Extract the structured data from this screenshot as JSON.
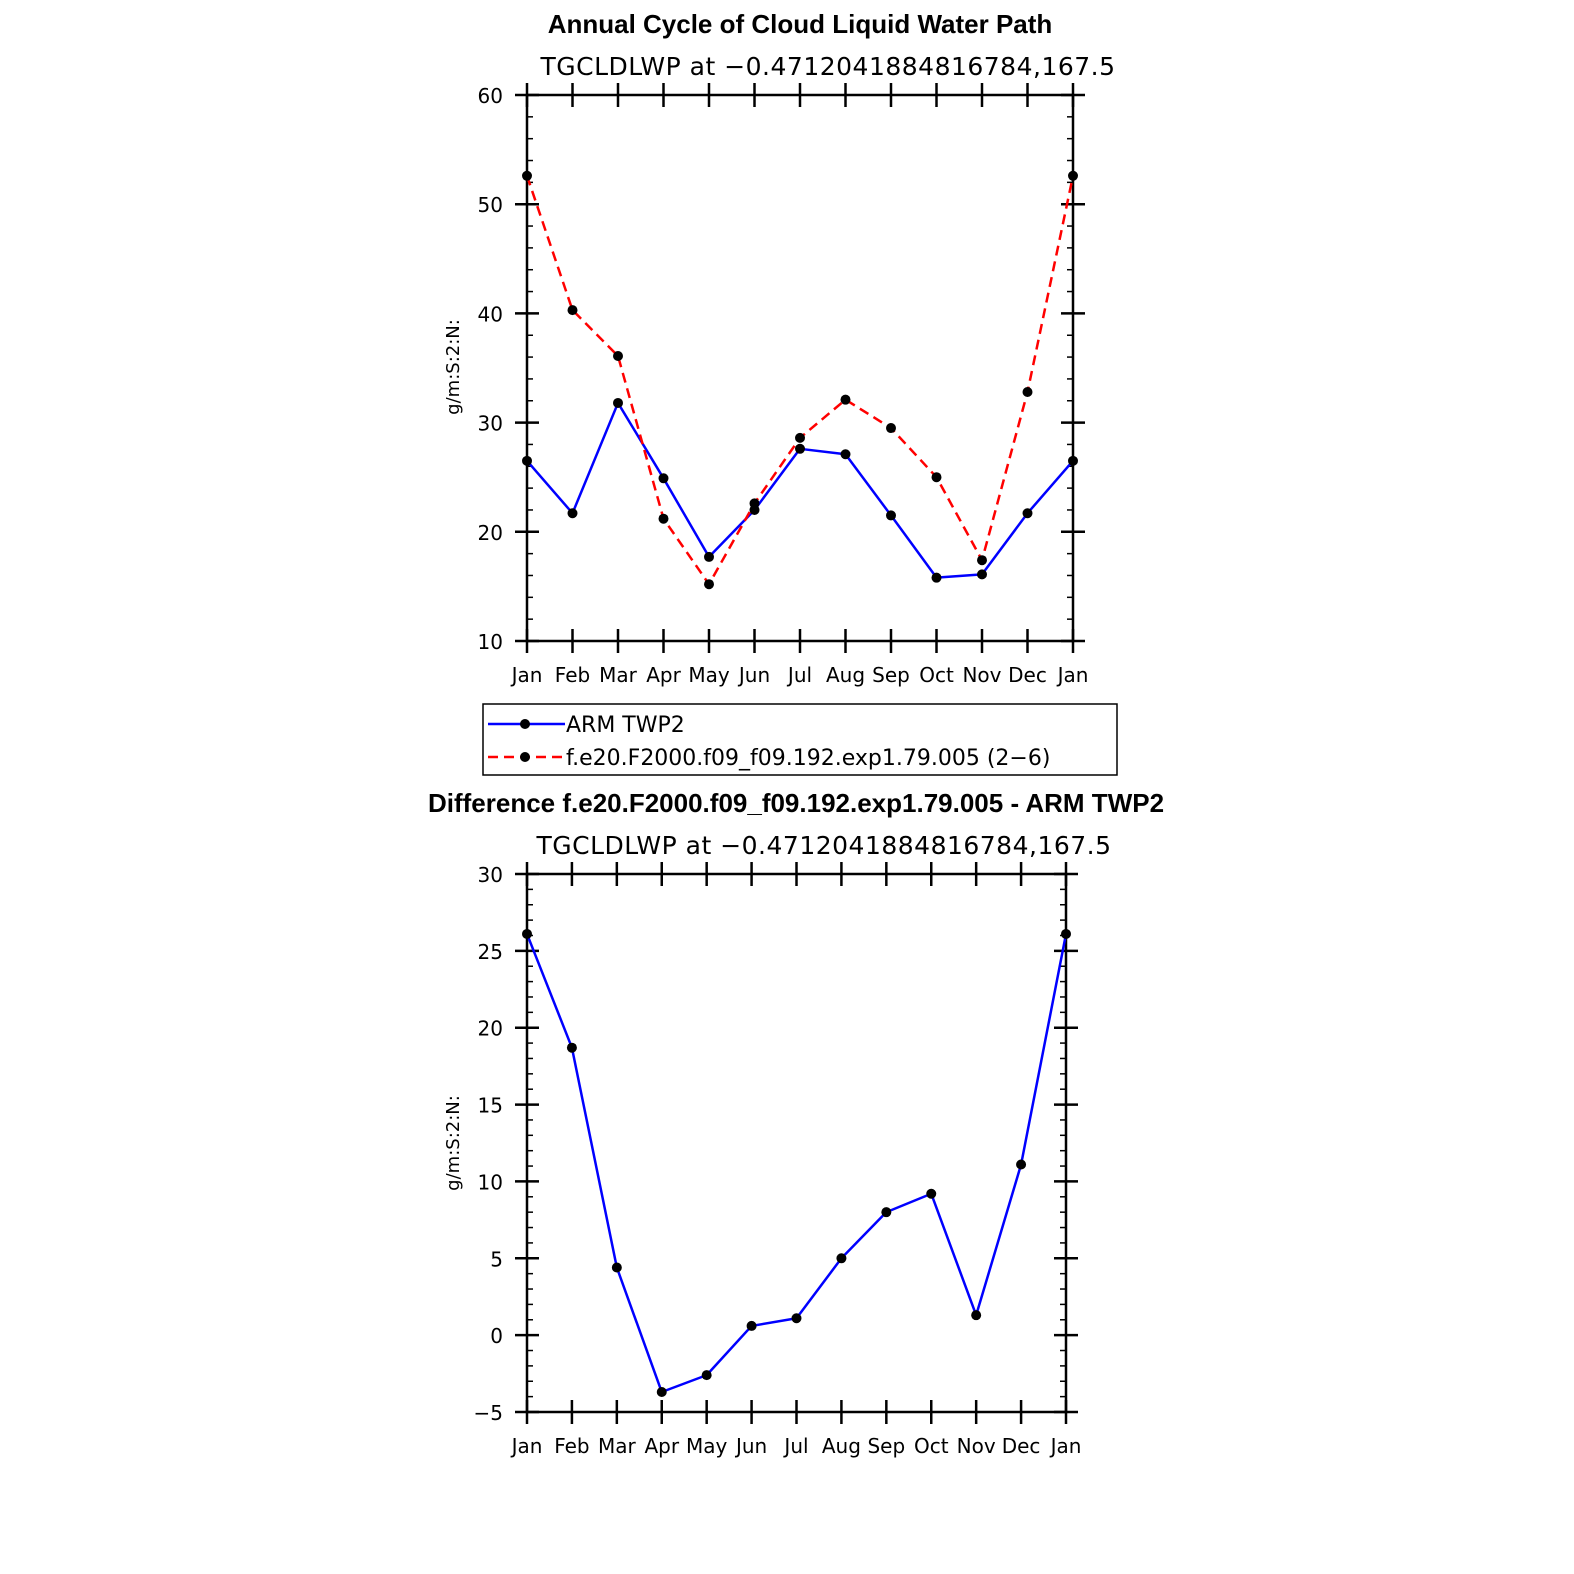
{
  "chart_data": [
    {
      "type": "line",
      "title": "Annual Cycle of Cloud Liquid Water Path",
      "subtitle": "TGCLDLWP at −0.4712041884816784,167.5",
      "xlabel": "",
      "ylabel": "g/m:S:2:N:",
      "categories": [
        "Jan",
        "Feb",
        "Mar",
        "Apr",
        "May",
        "Jun",
        "Jul",
        "Aug",
        "Sep",
        "Oct",
        "Nov",
        "Dec",
        "Jan"
      ],
      "ylim": [
        10,
        60
      ],
      "yticks": [
        "10",
        "20",
        "30",
        "40",
        "50",
        "60"
      ],
      "series": [
        {
          "name": "ARM TWP2",
          "color": "#0000ff",
          "dash": "solid",
          "values": [
            26.5,
            21.7,
            31.8,
            24.9,
            17.7,
            22.0,
            27.6,
            27.1,
            21.5,
            15.8,
            16.1,
            21.7,
            26.5
          ]
        },
        {
          "name": "f.e20.F2000.f09_f09.192.exp1.79.005 (2−6)",
          "color": "#ff0000",
          "dash": "dashed",
          "values": [
            52.6,
            40.3,
            36.1,
            21.2,
            15.2,
            22.6,
            28.6,
            32.1,
            29.5,
            25.0,
            17.4,
            32.8,
            52.6
          ]
        }
      ],
      "legend": "below"
    },
    {
      "type": "line",
      "title": "Difference f.e20.F2000.f09_f09.192.exp1.79.005 - ARM TWP2",
      "subtitle": "TGCLDLWP at −0.4712041884816784,167.5",
      "xlabel": "",
      "ylabel": "g/m:S:2:N:",
      "categories": [
        "Jan",
        "Feb",
        "Mar",
        "Apr",
        "May",
        "Jun",
        "Jul",
        "Aug",
        "Sep",
        "Oct",
        "Nov",
        "Dec",
        "Jan"
      ],
      "ylim": [
        -5,
        30
      ],
      "yticks": [
        "−5",
        "0",
        "5",
        "10",
        "15",
        "20",
        "25",
        "30"
      ],
      "series": [
        {
          "name": "Difference",
          "color": "#0000ff",
          "dash": "solid",
          "values": [
            26.1,
            18.7,
            4.4,
            -3.7,
            -2.6,
            0.6,
            1.1,
            5.0,
            8.0,
            9.2,
            1.3,
            11.1,
            26.1
          ]
        }
      ]
    }
  ]
}
